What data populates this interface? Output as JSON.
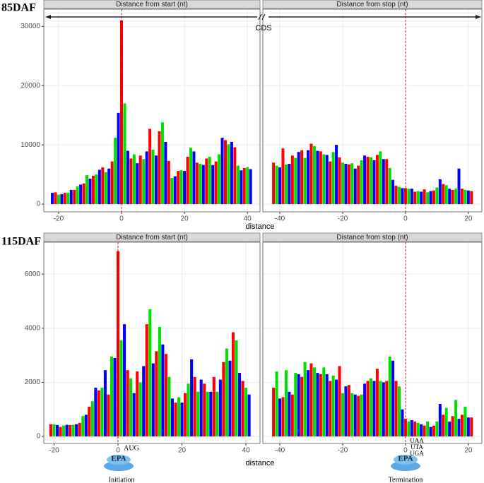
{
  "rows": [
    {
      "label": "85DAF",
      "xlabel": "distance"
    },
    {
      "label": "115DAF",
      "xlabel": "distance"
    }
  ],
  "frame_colors": [
    "#ff0000",
    "#00e000",
    "#0000ff"
  ],
  "chart_data": [
    {
      "type": "bar",
      "strip": "Distance from start (nt)",
      "annotation": "CDS",
      "x": [
        -22,
        -21,
        -20,
        -19,
        -18,
        -17,
        -16,
        -15,
        -14,
        -13,
        -12,
        -11,
        -10,
        -9,
        -8,
        -7,
        -6,
        -5,
        -4,
        -3,
        -2,
        -1,
        0,
        1,
        2,
        3,
        4,
        5,
        6,
        7,
        8,
        9,
        10,
        11,
        12,
        13,
        14,
        15,
        16,
        17,
        18,
        19,
        20,
        21,
        22,
        23,
        24,
        25,
        26,
        27,
        28,
        29,
        30,
        31,
        32,
        33,
        34,
        35,
        36,
        37,
        38,
        39,
        40,
        41
      ],
      "values": [
        1900,
        2000,
        1600,
        1700,
        1900,
        1900,
        2400,
        2400,
        3000,
        3300,
        3500,
        4900,
        4300,
        4800,
        5000,
        5800,
        6200,
        5400,
        6000,
        7200,
        11200,
        15400,
        31000,
        17000,
        9000,
        7700,
        8400,
        6900,
        8200,
        7600,
        8900,
        12700,
        9200,
        8200,
        12300,
        13800,
        10500,
        7300,
        4400,
        4700,
        5600,
        5700,
        5600,
        8000,
        9500,
        8900,
        7000,
        6800,
        6600,
        7700,
        8000,
        6600,
        7200,
        8400,
        11200,
        10800,
        10100,
        10500,
        9600,
        6500,
        5700,
        6100,
        6200,
        5900
      ],
      "xlim": [
        -24.7,
        44
      ],
      "ylim": [
        -1300,
        32900
      ],
      "xticks": [
        -20,
        0,
        20,
        40
      ],
      "yticks": [
        0,
        10000,
        20000,
        30000
      ],
      "grid": true
    },
    {
      "type": "bar",
      "strip": "Distance from stop (nt)",
      "x": [
        -42,
        -41,
        -40,
        -39,
        -38,
        -37,
        -36,
        -35,
        -34,
        -33,
        -32,
        -31,
        -30,
        -29,
        -28,
        -27,
        -26,
        -25,
        -24,
        -23,
        -22,
        -21,
        -20,
        -19,
        -18,
        -17,
        -16,
        -15,
        -14,
        -13,
        -12,
        -11,
        -10,
        -9,
        -8,
        -7,
        -6,
        -5,
        -4,
        -3,
        -2,
        -1,
        0,
        1,
        2,
        3,
        4,
        5,
        6,
        7,
        8,
        9,
        10,
        11,
        12,
        13,
        14,
        15,
        16,
        17,
        18,
        19,
        20,
        21
      ],
      "values": [
        7000,
        6500,
        6200,
        9400,
        6700,
        6800,
        8200,
        7800,
        8800,
        9100,
        7800,
        9100,
        10200,
        9800,
        9000,
        8900,
        8400,
        8300,
        7200,
        8800,
        10000,
        7900,
        7000,
        6800,
        6700,
        6900,
        6000,
        6500,
        7400,
        8200,
        8000,
        7900,
        7400,
        8300,
        8900,
        7600,
        7600,
        6100,
        4100,
        3100,
        2900,
        2700,
        2700,
        2600,
        2600,
        2100,
        2200,
        2100,
        2500,
        2000,
        2200,
        2300,
        2800,
        4200,
        3400,
        3200,
        2600,
        2400,
        2600,
        6000,
        2600,
        2400,
        2300,
        2200
      ],
      "xlim": [
        -45.4,
        24.3
      ],
      "xticks": [
        -40,
        -20,
        0,
        20
      ],
      "grid": true
    },
    {
      "type": "bar",
      "strip": "Distance from start (nt)",
      "start_codon": "AUG",
      "ribosome": "EPA",
      "stage": "Initiation",
      "x": [
        -21,
        -20,
        -19,
        -18,
        -17,
        -16,
        -15,
        -14,
        -13,
        -12,
        -11,
        -10,
        -9,
        -8,
        -7,
        -6,
        -5,
        -4,
        -3,
        -2,
        -1,
        0,
        1,
        2,
        3,
        4,
        5,
        6,
        7,
        8,
        9,
        10,
        11,
        12,
        13,
        14,
        15,
        16,
        17,
        18,
        19,
        20,
        21,
        22,
        23,
        24,
        25,
        26,
        27,
        28,
        29,
        30,
        31,
        32,
        33,
        34,
        35,
        36,
        37,
        38,
        39,
        40,
        41
      ],
      "values": [
        450,
        450,
        420,
        350,
        400,
        430,
        420,
        430,
        450,
        500,
        750,
        800,
        1100,
        1300,
        1800,
        1700,
        1800,
        2450,
        1550,
        2950,
        2900,
        6850,
        3550,
        4150,
        2450,
        2150,
        1600,
        2400,
        2000,
        2600,
        4150,
        4700,
        2700,
        3150,
        4050,
        3400,
        3050,
        2200,
        1400,
        1250,
        1450,
        1250,
        1600,
        1950,
        2850,
        2200,
        1650,
        2100,
        1950,
        1650,
        1650,
        2200,
        1650,
        2100,
        2750,
        3250,
        2800,
        3850,
        3550,
        2350,
        2050,
        1800,
        1550
      ],
      "xlim": [
        -23.2,
        44.4
      ],
      "ylim": [
        -260,
        7180
      ],
      "xticks": [
        -20,
        0,
        20,
        40
      ],
      "yticks": [
        0,
        2000,
        4000,
        6000
      ],
      "grid": true
    },
    {
      "type": "bar",
      "strip": "Distance from stop (nt)",
      "stop_codons": [
        "UAA",
        "UTA",
        "UGA"
      ],
      "ribosome": "EPA",
      "stage": "Termination",
      "x": [
        -42,
        -41,
        -40,
        -39,
        -38,
        -37,
        -36,
        -35,
        -34,
        -33,
        -32,
        -31,
        -30,
        -29,
        -28,
        -27,
        -26,
        -25,
        -24,
        -23,
        -22,
        -21,
        -20,
        -19,
        -18,
        -17,
        -16,
        -15,
        -14,
        -13,
        -12,
        -11,
        -10,
        -9,
        -8,
        -7,
        -6,
        -5,
        -4,
        -3,
        -2,
        -1,
        0,
        1,
        2,
        3,
        4,
        5,
        6,
        7,
        8,
        9,
        10,
        11,
        12,
        13,
        14,
        15,
        16,
        17,
        18,
        19,
        20,
        21
      ],
      "values": [
        1800,
        2400,
        1400,
        1450,
        2450,
        1650,
        1550,
        2350,
        2300,
        2200,
        2750,
        2450,
        2700,
        2550,
        2350,
        2300,
        2550,
        2300,
        2050,
        2250,
        2100,
        2600,
        1600,
        1850,
        1900,
        1600,
        1550,
        1500,
        1550,
        1950,
        2050,
        2150,
        2050,
        2500,
        2050,
        2000,
        2050,
        2950,
        2800,
        2050,
        1850,
        1000,
        650,
        550,
        600,
        550,
        500,
        450,
        400,
        550,
        350,
        400,
        550,
        1200,
        800,
        1050,
        550,
        750,
        1350,
        650,
        800,
        1100,
        700,
        700
      ],
      "xlim": [
        -45.4,
        24.3
      ],
      "xticks": [
        -40,
        -20,
        0,
        20
      ],
      "grid": true
    }
  ]
}
